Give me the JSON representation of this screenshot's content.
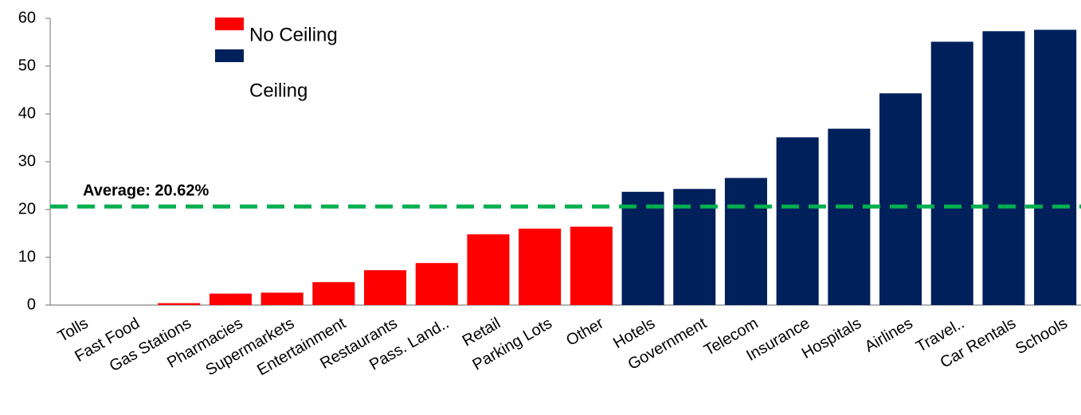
{
  "chart_data": {
    "type": "bar",
    "categories": [
      "Tolls",
      "Fast Food",
      "Gas Stations",
      "Pharmacies",
      "Supermarkets",
      "Entertainment",
      "Restaurants",
      "Pass. Land..",
      "Retail",
      "Parking Lots",
      "Other",
      "Hotels",
      "Government",
      "Telecom",
      "Insurance",
      "Hospitals",
      "Airlines",
      "Travel..",
      "Car Rentals",
      "Schools"
    ],
    "series": [
      {
        "name": "No Ceiling",
        "color": "#ff0000",
        "values": [
          0,
          0,
          0.4,
          2.4,
          2.6,
          4.8,
          7.3,
          8.8,
          14.8,
          16,
          16.4,
          null,
          null,
          null,
          null,
          null,
          null,
          null,
          null,
          null
        ]
      },
      {
        "name": "Ceiling",
        "color": "#00205b",
        "values": [
          null,
          null,
          null,
          null,
          null,
          null,
          null,
          null,
          null,
          null,
          null,
          23.7,
          24.3,
          26.6,
          35.1,
          36.9,
          44.3,
          55.1,
          57.3,
          57.6
        ]
      }
    ],
    "reference_line": {
      "value": 20.62,
      "label": "Average: 20.62%",
      "color": "#00b050"
    },
    "ylim": [
      0,
      60
    ],
    "yticks": [
      0,
      10,
      20,
      30,
      40,
      50,
      60
    ]
  }
}
